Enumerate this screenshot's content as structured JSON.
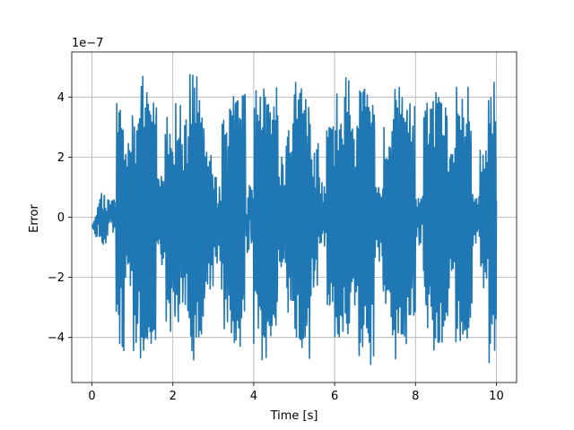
{
  "chart_data": {
    "type": "line",
    "title": "",
    "xlabel": "Time [s]",
    "ylabel": "Error",
    "y_scale_note": "1e−7",
    "xlim": [
      -0.5,
      10.5
    ],
    "ylim": [
      -5.5,
      5.5
    ],
    "y_unit_multiplier": 1e-07,
    "grid": true,
    "x_ticks": [
      0,
      2,
      4,
      6,
      8,
      10
    ],
    "x_tick_labels": [
      "0",
      "2",
      "4",
      "6",
      "8",
      "10"
    ],
    "y_ticks": [
      -4,
      -2,
      0,
      2,
      4
    ],
    "y_tick_labels": [
      "−4",
      "−2",
      "0",
      "2",
      "4"
    ],
    "series": [
      {
        "color": "#1f77b4",
        "x_range": [
          0,
          10
        ],
        "amplitude_range": [
          -4.9,
          5.0
        ],
        "values_sample": [
          0.2,
          -0.4,
          0.1,
          -4.3,
          2.1,
          4.0,
          -4.9,
          4.3,
          1.5,
          -3.6,
          3.8,
          -2.9,
          4.9,
          -4.0,
          2.7,
          -1.2,
          3.3,
          -4.5,
          4.6,
          -0.8,
          -3.9,
          4.9,
          -4.3,
          1.7,
          3.1,
          -4.7,
          4.4,
          -2.2,
          0.9,
          -3.4,
          4.0,
          -4.2,
          2.9,
          4.8,
          -4.6,
          1.1,
          -2.7,
          4.5,
          -4.8,
          3.6,
          -0.5,
          -3.8,
          4.9,
          -4.4,
          2.4,
          3.9,
          -4.7,
          0.6,
          -2.1,
          4.7,
          -4.1
        ]
      }
    ]
  }
}
